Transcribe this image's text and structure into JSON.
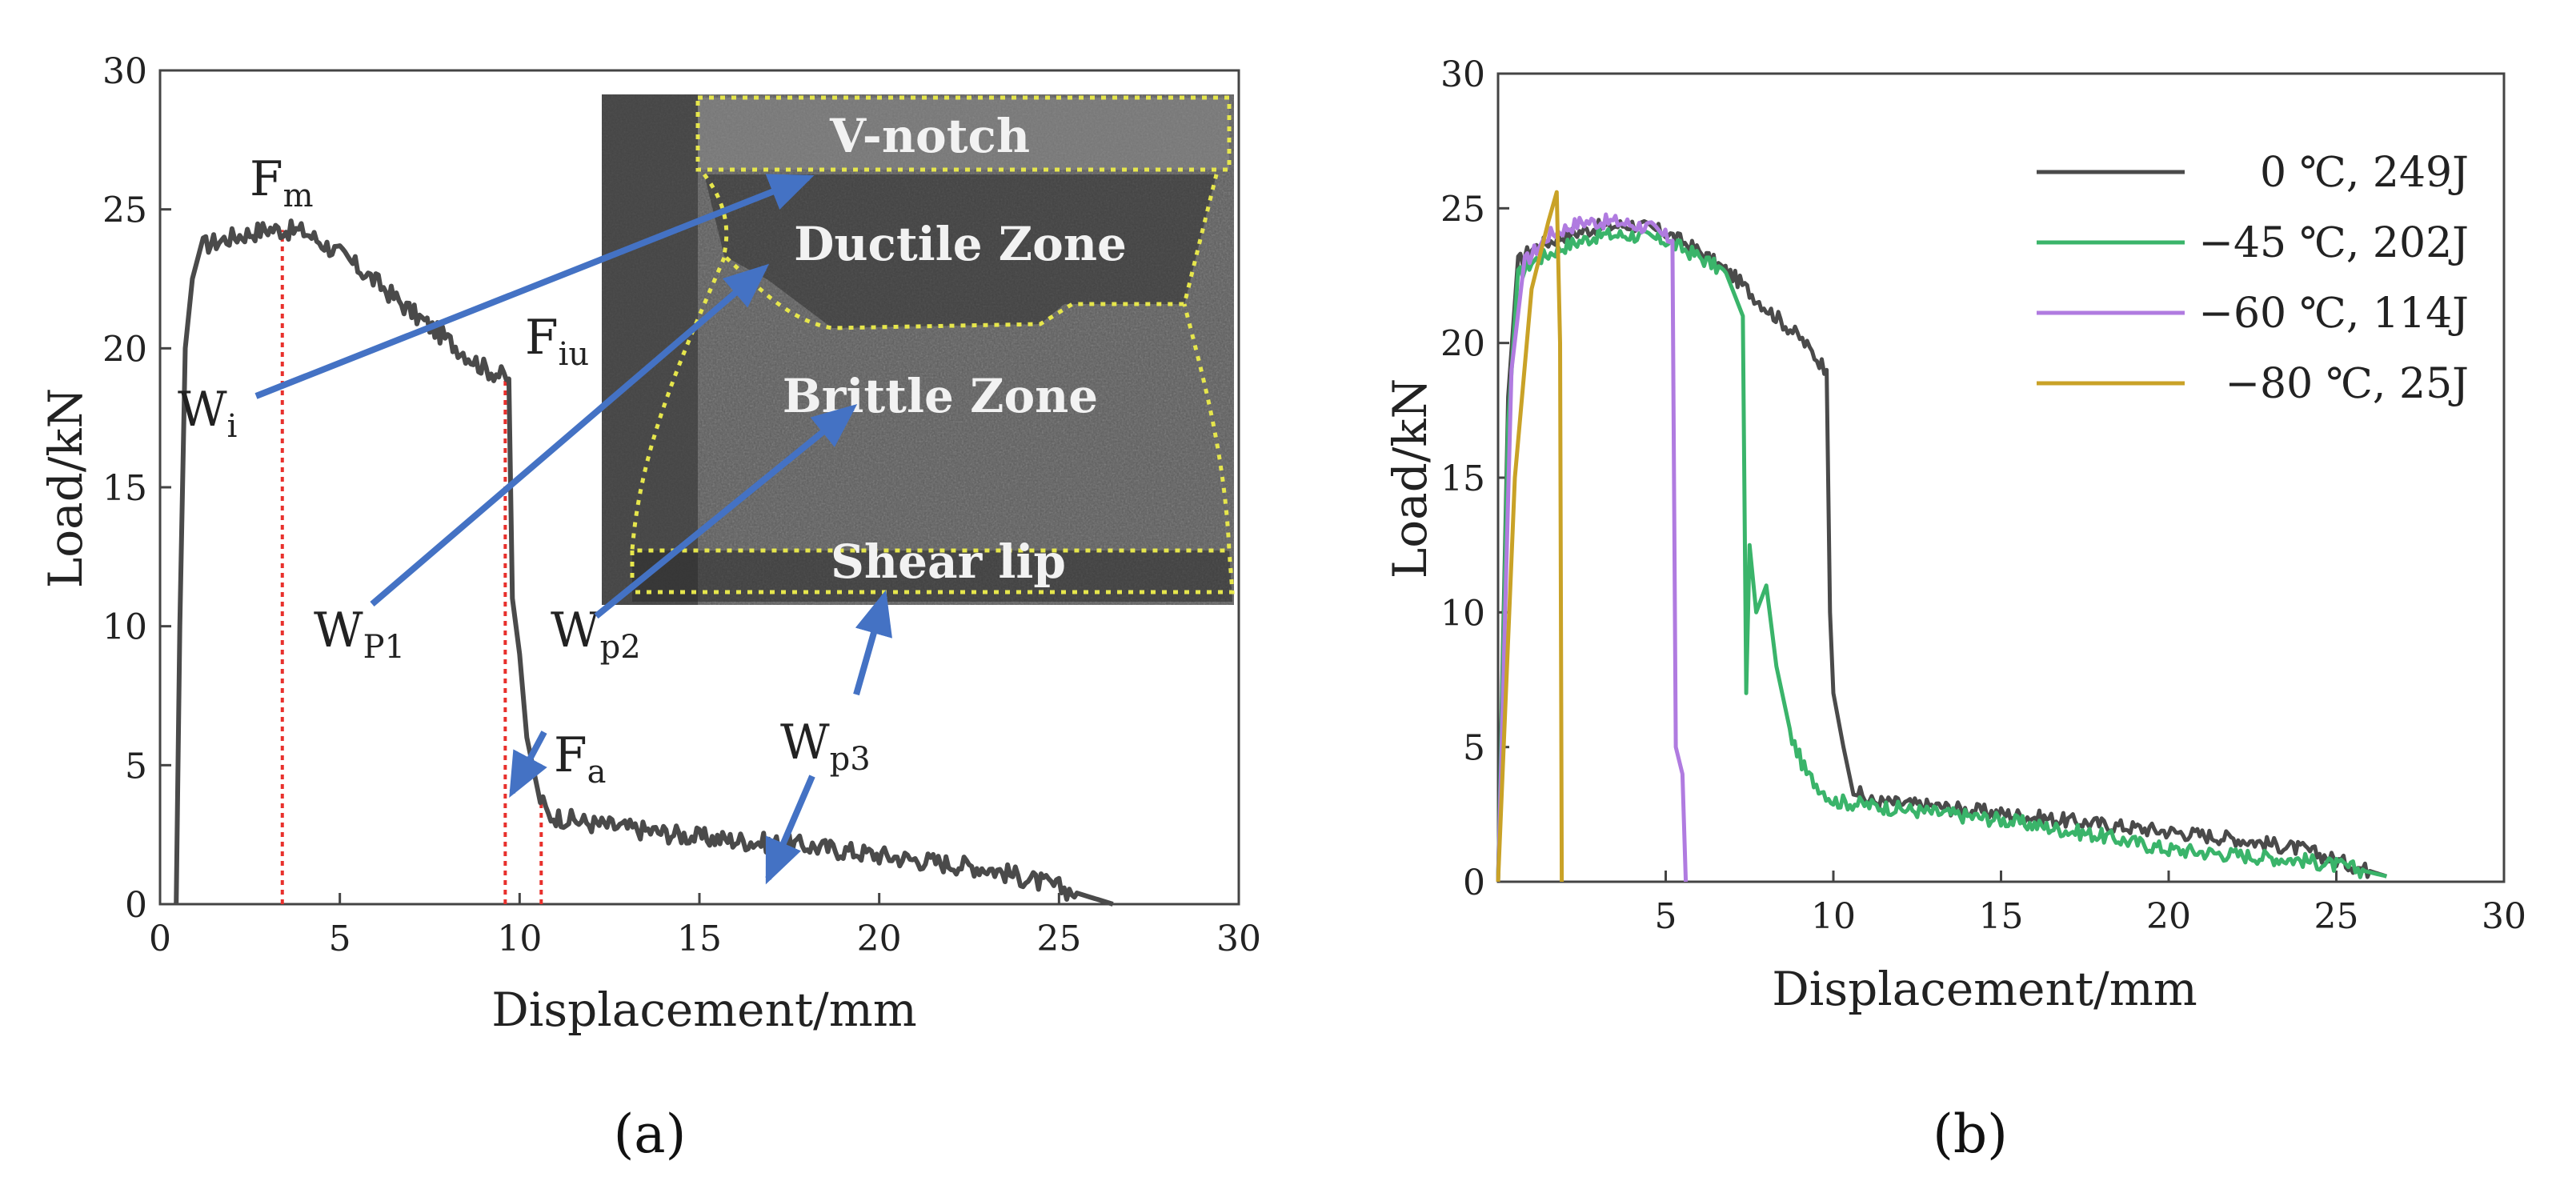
{
  "chart_data": [
    {
      "type": "line",
      "panel_label": "(a)",
      "xlabel": "Displacement/mm",
      "ylabel": "Load/kN",
      "xlim": [
        0,
        30
      ],
      "ylim": [
        0,
        30
      ],
      "xticks": [
        "0",
        "5",
        "10",
        "15",
        "20",
        "25",
        "30"
      ],
      "yticks": [
        "0",
        "5",
        "10",
        "15",
        "20",
        "25",
        "30"
      ],
      "series": [
        {
          "color": "#4a4a4a",
          "x": [
            0.45,
            0.55,
            0.7,
            0.9,
            1.2,
            2,
            3,
            4,
            5,
            6,
            7,
            8,
            9,
            9.7,
            9.8,
            10.0,
            10.2,
            10.5,
            10.8,
            12,
            15,
            18,
            21,
            23,
            25,
            26.5
          ],
          "y": [
            0,
            10,
            20,
            22.5,
            23.7,
            24.0,
            24.3,
            24.2,
            23.4,
            22.4,
            21.3,
            20.3,
            19.3,
            18.9,
            11,
            9,
            6,
            4,
            3.2,
            2.9,
            2.4,
            2.1,
            1.6,
            1.3,
            0.6,
            0
          ]
        }
      ],
      "markers_x": [
        3.4,
        9.6,
        10.6
      ],
      "annotations": {
        "fm": "F",
        "fm_sub": "m",
        "fiu": "F",
        "fiu_sub": "iu",
        "fa": "F",
        "fa_sub": "a",
        "wi": "W",
        "wi_sub": "i",
        "wp1": "W",
        "wp1_sub": "P1",
        "wp2": "W",
        "wp2_sub": "p2",
        "wp3": "W",
        "wp3_sub": "p3"
      },
      "inset_zones": [
        "V-notch",
        "Ductile Zone",
        "Brittle Zone",
        "Shear lip"
      ],
      "arrow_color": "#4472c4",
      "marker_color": "#e8302c",
      "zone_outline_color": "#e6e64c"
    },
    {
      "type": "line",
      "panel_label": "(b)",
      "xlabel": "Displacement/mm",
      "ylabel": "Load/kN",
      "xlim": [
        0,
        30
      ],
      "ylim": [
        0,
        30
      ],
      "xticks": [
        "5",
        "10",
        "15",
        "20",
        "25",
        "30"
      ],
      "yticks": [
        "0",
        "5",
        "10",
        "15",
        "20",
        "25",
        "30"
      ],
      "legend_position": "top-right",
      "series": [
        {
          "name": "0 ℃, 249J",
          "color": "#4a4a4a",
          "x": [
            0,
            0.3,
            0.6,
            1,
            2,
            3,
            4,
            5,
            6,
            7,
            8,
            9,
            9.8,
            9.9,
            10.0,
            10.3,
            10.6,
            11,
            13,
            16,
            19,
            22,
            24,
            25.5,
            26.5
          ],
          "y": [
            0,
            18,
            23,
            23.5,
            24,
            24.3,
            24.4,
            24.1,
            23.4,
            22.5,
            21.3,
            20.2,
            19,
            10,
            7,
            5,
            3.5,
            3,
            2.8,
            2.4,
            2,
            1.6,
            1.2,
            0.6,
            0.2
          ]
        },
        {
          "name": "−45 ℃, 202J",
          "color": "#3ab46a",
          "x": [
            0,
            0.3,
            0.6,
            1,
            2,
            3,
            4,
            5,
            6,
            6.8,
            7.3,
            7.4,
            7.5,
            7.7,
            8,
            8.3,
            8.7,
            9.2,
            10,
            12,
            15,
            18,
            20,
            22,
            24,
            25.5,
            26.5
          ],
          "y": [
            0,
            17,
            22.5,
            23,
            23.6,
            24,
            24,
            23.8,
            23.2,
            22.6,
            21,
            7,
            12.5,
            10,
            11,
            8,
            5.5,
            4,
            3,
            2.7,
            2.3,
            1.7,
            1.2,
            1,
            0.8,
            0.5,
            0.2
          ]
        },
        {
          "name": "−60 ℃, 114J",
          "color": "#b07be0",
          "x": [
            0,
            0.4,
            0.8,
            1.5,
            2.5,
            3.5,
            4.5,
            5.2,
            5.3,
            5.5,
            5.6
          ],
          "y": [
            0,
            19,
            23,
            24,
            24.5,
            24.5,
            24.3,
            23.8,
            5,
            4,
            0
          ]
        },
        {
          "name": "−80 ℃,  25J",
          "color": "#c9a227",
          "x": [
            0,
            0.5,
            1,
            1.5,
            1.75,
            1.85,
            1.9
          ],
          "y": [
            0,
            15,
            22,
            24.5,
            25.6,
            20,
            0
          ]
        }
      ]
    }
  ]
}
